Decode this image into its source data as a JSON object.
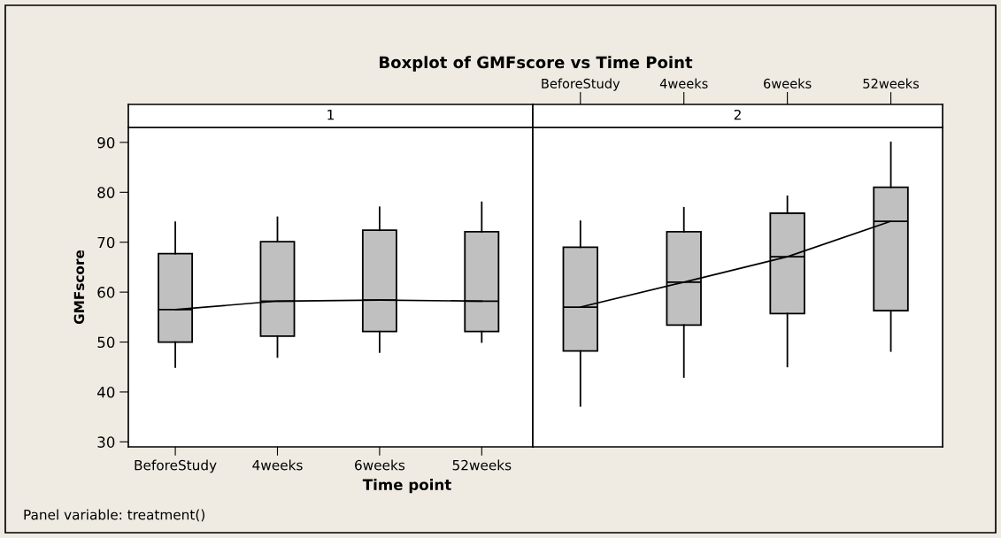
{
  "chart_data": [
    {
      "type": "box",
      "title": "Boxplot of GMFscore vs Time Point",
      "subtitle": "1",
      "xlabel": "Time point",
      "ylabel": "GMFscore",
      "categories": [
        "BeforeStudy",
        "4weeks",
        "6weeks",
        "52weeks"
      ],
      "series": [
        {
          "color": "#c0c0c0",
          "boxes": [
            {
              "low": 45,
              "q1": 50,
              "median": 56.5,
              "q3": 67.7,
              "high": 74
            },
            {
              "low": 47,
              "q1": 51.2,
              "median": 58.2,
              "q3": 70.1,
              "high": 75
            },
            {
              "low": 48,
              "q1": 52.1,
              "median": 58.4,
              "q3": 72.4,
              "high": 77
            },
            {
              "low": 50,
              "q1": 52.1,
              "median": 58.2,
              "q3": 72.1,
              "high": 78
            }
          ]
        },
        {
          "type": "line",
          "color": "#000000",
          "values": [
            56.5,
            58.2,
            58.4,
            58.2
          ]
        }
      ],
      "ylim": [
        29,
        93
      ],
      "yticks": [
        30,
        40,
        50,
        60,
        70,
        80,
        90
      ],
      "annotations": [
        "Panel variable: treatment()"
      ]
    },
    {
      "type": "box",
      "subtitle": "2",
      "categories": [
        "BeforeStudy",
        "4weeks",
        "6weeks",
        "52weeks"
      ],
      "series": [
        {
          "color": "#c0c0c0",
          "boxes": [
            {
              "low": 37.2,
              "q1": 48.2,
              "median": 57,
              "q3": 69,
              "high": 74.2
            },
            {
              "low": 43,
              "q1": 53.4,
              "median": 62,
              "q3": 72.1,
              "high": 76.9
            },
            {
              "low": 45.1,
              "q1": 55.7,
              "median": 67.1,
              "q3": 75.8,
              "high": 79.2
            },
            {
              "low": 48.2,
              "q1": 56.3,
              "median": 74.2,
              "q3": 81,
              "high": 90
            }
          ]
        },
        {
          "type": "line",
          "color": "#000000",
          "values": [
            57,
            62,
            67.1,
            74.2
          ]
        }
      ],
      "ylim": [
        29,
        93
      ],
      "tick_labels": "x"
    }
  ]
}
